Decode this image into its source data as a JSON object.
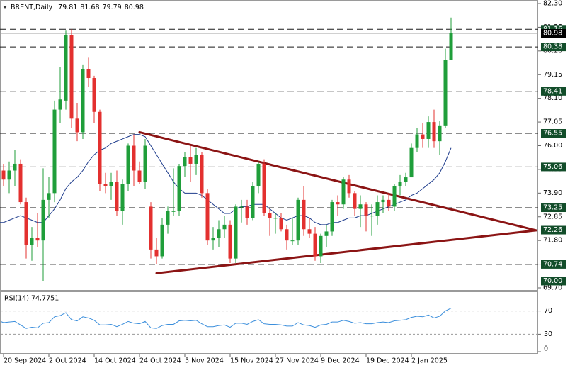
{
  "chart_data": {
    "type": "candlestick",
    "title": "BRENT,Daily",
    "categories": [
      null,
      "20 Sep 2024",
      null,
      null,
      null,
      null,
      null,
      null,
      null,
      "2 Oct 2024",
      null,
      null,
      null,
      null,
      null,
      null,
      null,
      "14 Oct 2024",
      null,
      null,
      null,
      null,
      null,
      null,
      null,
      "24 Oct 2024",
      null,
      null,
      null,
      null,
      null,
      null,
      null,
      "5 Nov 2024",
      null,
      null,
      null,
      null,
      null,
      null,
      null,
      "15 Nov 2024",
      null,
      null,
      null,
      null,
      null,
      null,
      null,
      "27 Nov 2024",
      null,
      null,
      null,
      null,
      null,
      null,
      null,
      "9 Dec 2024",
      null,
      null,
      null,
      null,
      null,
      null,
      null,
      "19 Dec 2024",
      null,
      null,
      null,
      null,
      null,
      null,
      null,
      "2 Jan 2025",
      null,
      null,
      null,
      null,
      null,
      null,
      null
    ],
    "open": [
      73.6,
      74.9,
      74.5,
      74.9,
      75.2,
      73.5,
      71.6,
      71.9,
      71.8,
      73.6,
      73.9,
      77.6,
      78.0,
      80.9,
      77.2,
      76.6,
      79.4,
      79.0,
      77.5,
      74.3,
      74.2,
      74.4,
      73.1,
      74.3,
      76.0,
      74.9,
      74.4,
      73.3,
      71.4,
      71.1,
      72.5,
      73.1,
      73.1,
      75.1,
      75.5,
      75.2,
      75.6,
      73.9,
      71.8,
      71.9,
      72.3,
      72.5,
      71.0,
      73.3,
      73.3,
      72.8,
      74.2,
      75.2,
      73.0,
      72.8,
      72.8,
      72.3,
      71.8,
      71.8,
      73.6,
      72.3,
      72.1,
      71.1,
      72.0,
      72.2,
      73.5,
      73.4,
      74.5,
      73.9,
      73.2,
      73.4,
      72.9,
      72.9,
      73.5,
      73.6,
      73.3,
      74.2,
      74.4,
      74.6,
      75.9,
      76.5,
      76.3,
      77.05,
      76.2,
      76.9,
      79.81
    ],
    "high": [
      75.0,
      75.2,
      75.3,
      75.8,
      75.4,
      73.7,
      72.4,
      73.0,
      75.0,
      74.6,
      78.0,
      79.5,
      81.1,
      81.16,
      77.9,
      79.6,
      79.9,
      79.1,
      77.6,
      74.8,
      74.8,
      74.9,
      74.5,
      76.1,
      76.5,
      75.3,
      76.3,
      73.5,
      71.9,
      72.8,
      73.3,
      75.0,
      75.2,
      75.7,
      76.0,
      75.9,
      75.7,
      74.1,
      72.4,
      72.7,
      72.9,
      72.7,
      73.4,
      73.6,
      73.6,
      74.4,
      75.3,
      75.4,
      73.2,
      73.0,
      73.0,
      72.5,
      72.8,
      73.7,
      74.2,
      72.8,
      72.4,
      72.1,
      72.5,
      73.6,
      73.8,
      74.6,
      74.7,
      74.0,
      73.8,
      73.5,
      73.4,
      73.8,
      73.8,
      73.9,
      74.3,
      74.7,
      74.8,
      76.1,
      76.8,
      77.0,
      77.3,
      77.6,
      77.1,
      80.3,
      81.68
    ],
    "low": [
      73.4,
      74.2,
      73.9,
      74.2,
      73.4,
      71.0,
      70.9,
      71.5,
      70.0,
      72.8,
      73.5,
      77.0,
      77.6,
      76.8,
      76.2,
      76.3,
      78.6,
      77.0,
      74.0,
      73.9,
      73.6,
      72.9,
      72.5,
      74.0,
      74.2,
      74.3,
      74.1,
      71.0,
      70.74,
      71.0,
      72.1,
      72.9,
      72.9,
      74.6,
      74.4,
      74.7,
      73.7,
      71.6,
      71.4,
      71.5,
      71.9,
      70.8,
      70.8,
      72.6,
      72.5,
      72.7,
      73.9,
      72.9,
      72.0,
      72.1,
      72.2,
      71.4,
      71.6,
      71.6,
      72.0,
      71.9,
      70.9,
      70.8,
      71.5,
      72.0,
      72.9,
      73.2,
      73.7,
      72.9,
      72.4,
      72.2,
      72.0,
      72.5,
      73.0,
      73.1,
      73.1,
      73.8,
      74.2,
      74.6,
      75.7,
      75.9,
      75.9,
      75.9,
      75.6,
      76.8,
      79.79
    ],
    "close": [
      74.9,
      74.5,
      74.9,
      75.2,
      73.5,
      71.6,
      71.9,
      71.8,
      73.6,
      73.9,
      77.6,
      78.05,
      80.9,
      77.2,
      76.6,
      79.4,
      79.0,
      77.5,
      74.3,
      74.2,
      74.4,
      73.1,
      74.3,
      76.0,
      74.9,
      74.4,
      76.0,
      71.4,
      71.1,
      72.5,
      73.1,
      73.1,
      75.1,
      75.5,
      75.2,
      75.6,
      73.9,
      71.8,
      71.9,
      72.3,
      72.5,
      71.0,
      73.3,
      73.3,
      72.8,
      74.2,
      75.2,
      73.0,
      72.8,
      72.8,
      72.3,
      71.8,
      71.8,
      73.6,
      72.3,
      72.1,
      71.1,
      72.0,
      72.2,
      73.5,
      73.4,
      74.5,
      73.9,
      73.2,
      73.4,
      72.9,
      72.9,
      73.5,
      73.6,
      73.3,
      74.2,
      74.4,
      74.6,
      75.9,
      76.5,
      76.3,
      77.05,
      76.2,
      76.9,
      79.8,
      80.98
    ],
    "up_color": "#1f9e3a",
    "down_color": "#e3302f",
    "ma": {
      "color": "#1e3c8c",
      "values": [
        72.6,
        72.6,
        72.7,
        72.8,
        72.9,
        72.8,
        72.7,
        72.6,
        72.6,
        72.9,
        73.2,
        73.6,
        74.1,
        74.4,
        74.6,
        74.9,
        75.3,
        75.6,
        75.8,
        75.9,
        76.1,
        76.2,
        76.3,
        76.4,
        76.5,
        76.5,
        76.4,
        76.0,
        75.6,
        75.2,
        74.8,
        74.4,
        74.1,
        73.9,
        73.9,
        73.9,
        73.8,
        73.6,
        73.4,
        73.2,
        73.0,
        73.0,
        73.2,
        73.3,
        73.3,
        73.4,
        73.4,
        73.4,
        73.2,
        73.0,
        72.8,
        72.7,
        72.8,
        72.9,
        72.9,
        72.8,
        72.6,
        72.5,
        72.5,
        72.6,
        72.6,
        72.7,
        72.8,
        72.8,
        72.9,
        72.9,
        73.0,
        73.1,
        73.2,
        73.3,
        73.4,
        73.5,
        73.6,
        73.8,
        73.9,
        74.1,
        74.3,
        74.5,
        74.8,
        75.3,
        75.9
      ]
    },
    "ylim": [
      69.7,
      82.3
    ],
    "yticks": [
      {
        "value": 82.3,
        "label": "82.30"
      },
      81.25,
      {
        "value": 80.2,
        "label": "80.20"
      },
      79.15,
      {
        "value": 78.1,
        "label": "78.10"
      },
      77.05,
      {
        "value": 76,
        "label": "76.00"
      },
      74.95,
      {
        "value": 73.9,
        "label": "73.90"
      },
      72.85,
      {
        "value": 71.8,
        "label": "71.80"
      },
      70.75,
      {
        "value": 69.7,
        "label": "69.70"
      }
    ],
    "levels": [
      81.16,
      80.38,
      78.41,
      76.55,
      75.06,
      73.25,
      72.26,
      70.74,
      {
        "value": 70,
        "label": "70.00"
      }
    ],
    "level_color": "#124d2a",
    "trend_color": "#8b1414",
    "trend_lines": [
      {
        "from": {
          "index": 25,
          "value": 76.6
        },
        "to": {
          "index": 95,
          "value": 72.25
        }
      },
      {
        "from": {
          "index": 28,
          "value": 70.35
        },
        "to": {
          "index": 95,
          "value": 72.25
        }
      }
    ],
    "rsi": {
      "title": "RSI(14) 74.7751",
      "color": "#3c8fdc",
      "values": [
        52,
        50,
        51,
        52,
        46,
        40,
        42,
        41,
        49,
        50,
        60,
        62,
        67,
        55,
        53,
        60,
        58,
        54,
        46,
        46,
        47,
        43,
        47,
        52,
        49,
        48,
        52,
        41,
        40,
        45,
        47,
        47,
        53,
        54,
        53,
        54,
        48,
        43,
        43,
        45,
        46,
        42,
        49,
        49,
        47,
        52,
        55,
        48,
        47,
        47,
        46,
        44,
        44,
        50,
        46,
        45,
        42,
        46,
        47,
        51,
        51,
        54,
        52,
        49,
        50,
        48,
        48,
        50,
        51,
        50,
        53,
        54,
        55,
        59,
        61,
        60,
        63,
        58,
        61,
        70,
        74.78
      ],
      "ylim": [
        0,
        100
      ],
      "yticks": [
        70,
        30,
        0
      ],
      "levels": [
        70,
        30
      ]
    }
  }
}
